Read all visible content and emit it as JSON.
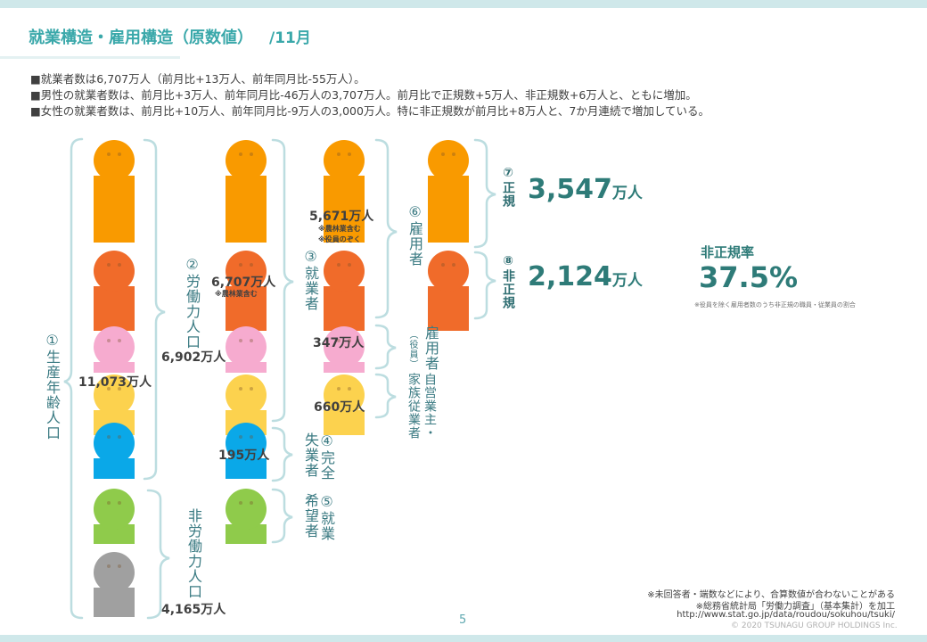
{
  "header": {
    "title": "就業構造・雇用構造（原数値）",
    "period": "/11月"
  },
  "bullets": [
    "■就業者数は6,707万人（前月比+13万人、前年同月比-55万人）。",
    "■男性の就業者数は、前月比+3万人、前年同月比-46万人の3,707万人。前月比で正規数+5万人、非正規数+6万人と、ともに増加。",
    "■女性の就業者数は、前月比+10万人、前年同月比-9万人の3,000万人。特に非正規数が前月比+8万人と、7か月連続で増加している。"
  ],
  "colors": {
    "orange": "#f99a00",
    "dark_orange": "#f06b2a",
    "pink": "#f6abcf",
    "yellow": "#fcd24e",
    "blue": "#0aa8e8",
    "green": "#8fcb4b",
    "gray": "#a0a0a0",
    "accent": "#2e7b78",
    "title": "#3aa8aa"
  },
  "groups": {
    "working_age": {
      "label": "①生産年齢人口",
      "value": "11,073万人"
    },
    "labor_force": {
      "label": "②労働力人口",
      "value": "6,902万人"
    },
    "not_in_labor_force": {
      "label": "非労働力人口",
      "value": "4,165万人"
    },
    "employed": {
      "label": "③就業者",
      "value": "6,707万人",
      "note": "※農林業含む"
    },
    "unemployed": {
      "label_line1": "④完全",
      "label_line2": "失業者",
      "value": "195万人"
    },
    "want_job": {
      "label_line1": "⑤就業",
      "label_line2": "希望者"
    },
    "employees": {
      "label": "⑥雇用者",
      "value": "5,671万人",
      "note1": "※農林業含む",
      "note2": "※役員のぞく"
    },
    "executives": {
      "label": "雇用者",
      "label_sub": "（役員）",
      "value": "347万人"
    },
    "self_employed": {
      "label_line1": "自営業主・",
      "label_line2": "家族従業者",
      "value": "660万人"
    },
    "regular": {
      "label_num": "⑦",
      "label": "正規",
      "value": "3,547",
      "unit": "万人"
    },
    "non_regular": {
      "label_num": "⑧",
      "label": "非正規",
      "value": "2,124",
      "unit": "万人"
    }
  },
  "non_regular_rate": {
    "label": "非正規率",
    "value": "37.5%",
    "note": "※役員を除く雇用者数のうち非正規の職員・従業員の割合"
  },
  "footer": {
    "note1": "※未回答者・端数などにより、合算数値が合わないことがある",
    "note2": "※総務省統計局「労働力調査」（基本集計）を加工",
    "url": "http://www.stat.go.jp/data/roudou/sokuhou/tsuki/",
    "copyright": "© 2020 TSUNAGU GROUP HOLDINGS Inc.",
    "page": "5"
  }
}
